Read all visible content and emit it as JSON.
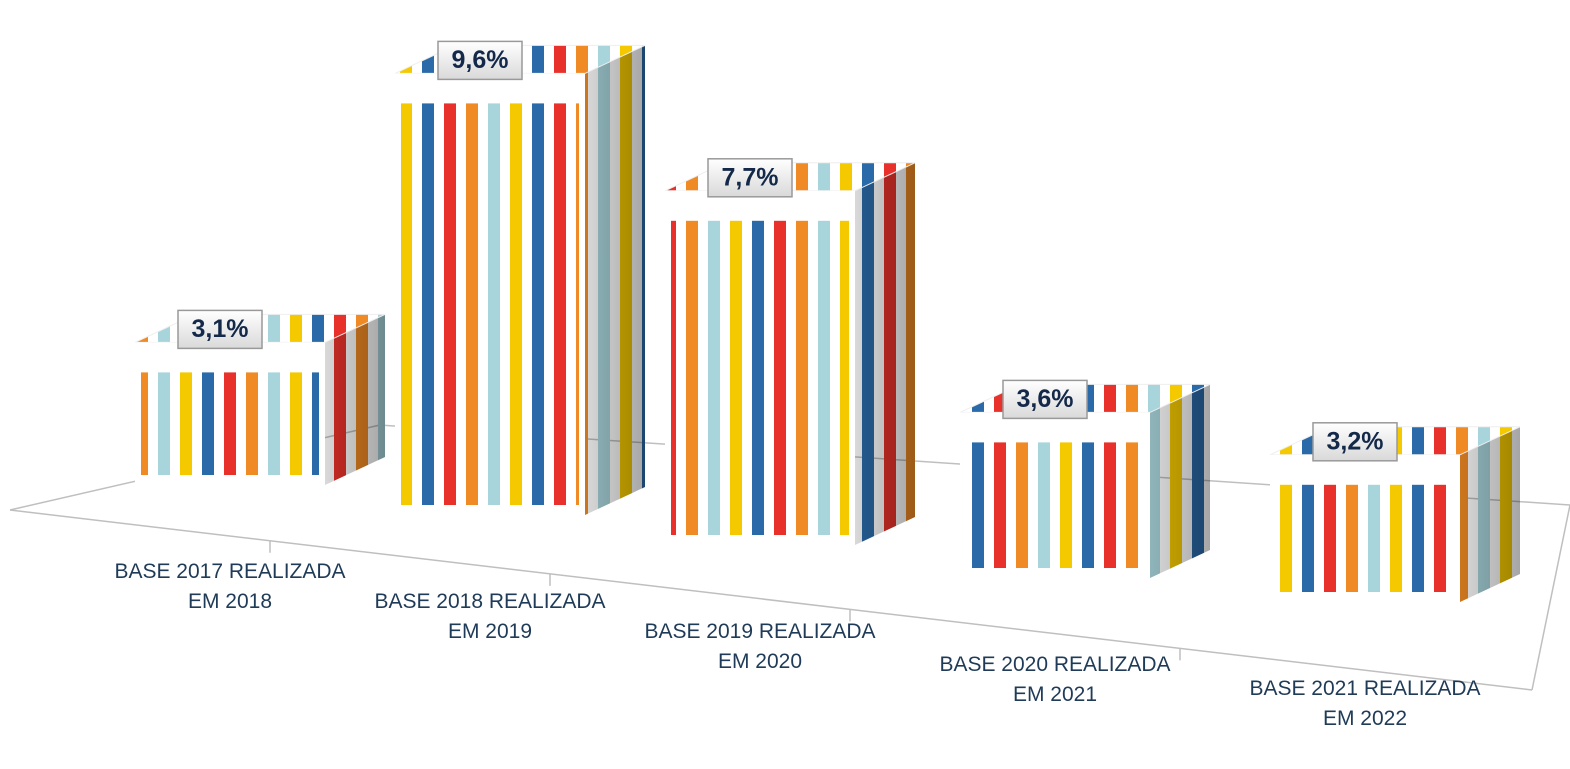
{
  "chart_data": {
    "type": "bar3d",
    "categories": [
      "BASE 2017 REALIZADA EM 2018",
      "BASE 2018 REALIZADA EM 2019",
      "BASE 2019 REALIZADA EM 2020",
      "BASE 2020 REALIZADA EM 2021",
      "BASE 2021 REALIZADA EM 2022"
    ],
    "values": [
      3.1,
      9.6,
      7.7,
      3.6,
      3.2
    ],
    "value_labels": [
      "3,1%",
      "9,6%",
      "7,7%",
      "3,6%",
      "3,2%"
    ],
    "colors": [
      "#e8312a",
      "#f08a24",
      "#a8d5dc",
      "#f5c900",
      "#2b6aa8"
    ]
  }
}
